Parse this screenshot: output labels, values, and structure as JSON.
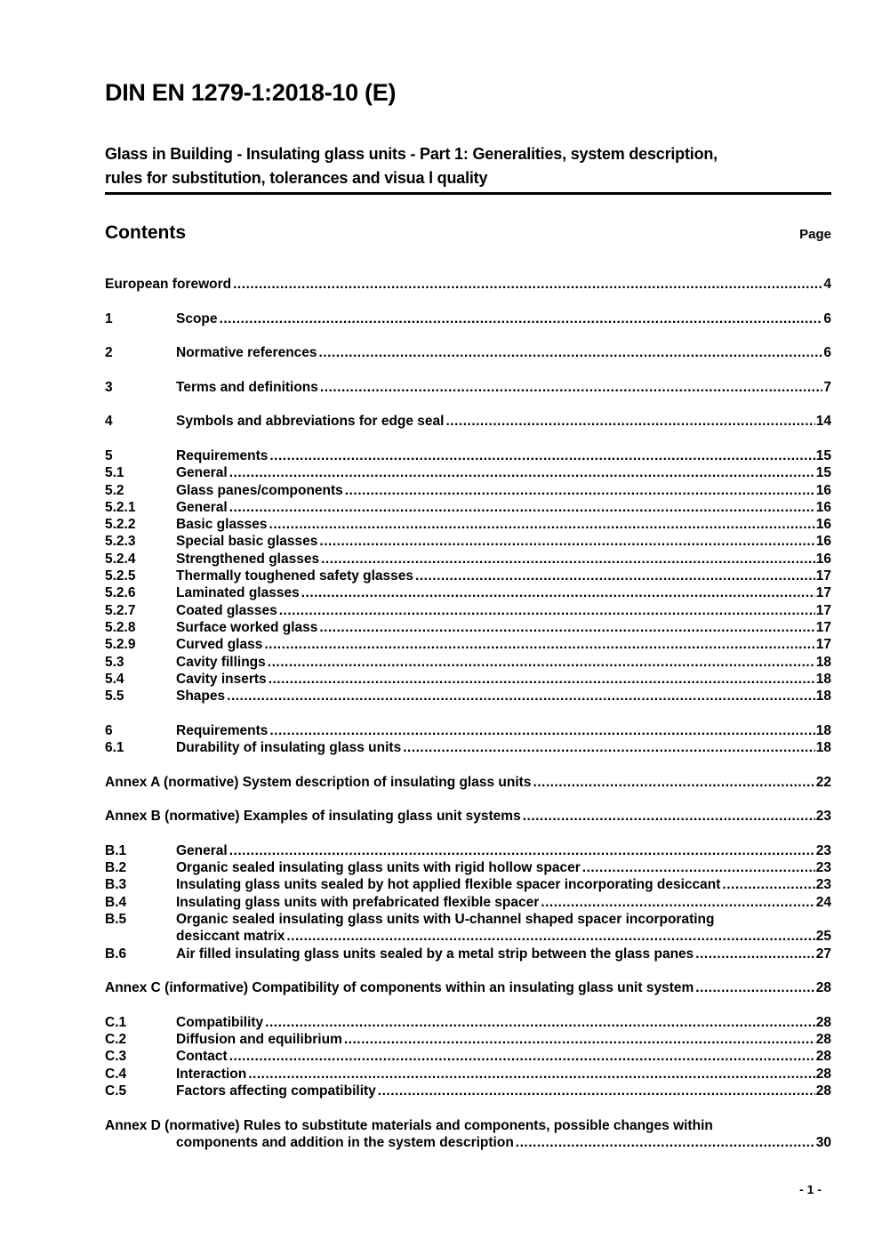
{
  "header": {
    "doc_number": "DIN EN 1279-1:2018-10 (E)",
    "doc_title_line1": "Glass in Building - Insulating glass units - Part 1: Generalities, system description,",
    "doc_title_line2": "rules for substitution, tolerances and visua l quality"
  },
  "contents": {
    "heading": "Contents",
    "page_column_label": "Page",
    "rows": [
      {
        "full": true,
        "text": "European foreword",
        "page": "4"
      },
      {
        "num": "1",
        "text": "Scope",
        "page": "6",
        "gap": true
      },
      {
        "num": "2",
        "text": "Normative references",
        "page": "6",
        "gap": true
      },
      {
        "num": "3",
        "text": "Terms and definitions",
        "page": "7",
        "gap": true
      },
      {
        "num": "4",
        "text": "Symbols and abbreviations for edge seal",
        "page": "14",
        "gap": true
      },
      {
        "num": "5",
        "text": "Requirements",
        "page": "15",
        "gap": true
      },
      {
        "num": "5.1",
        "text": "General",
        "page": "15"
      },
      {
        "num": "5.2",
        "text": "Glass panes/components",
        "page": "16"
      },
      {
        "num": "5.2.1",
        "text": "General",
        "page": "16"
      },
      {
        "num": "5.2.2",
        "text": "Basic glasses",
        "page": "16"
      },
      {
        "num": "5.2.3",
        "text": "Special basic glasses",
        "page": "16"
      },
      {
        "num": "5.2.4",
        "text": "Strengthened glasses",
        "page": "16"
      },
      {
        "num": "5.2.5",
        "text": "Thermally toughened safety glasses",
        "page": "17"
      },
      {
        "num": "5.2.6",
        "text": "Laminated glasses",
        "page": "17"
      },
      {
        "num": "5.2.7",
        "text": "Coated glasses",
        "page": "17"
      },
      {
        "num": "5.2.8",
        "text": "Surface worked glass",
        "page": "17"
      },
      {
        "num": "5.2.9",
        "text": "Curved glass",
        "page": "17"
      },
      {
        "num": "5.3",
        "text": "Cavity fillings",
        "page": "18"
      },
      {
        "num": "5.4",
        "text": "Cavity inserts",
        "page": "18"
      },
      {
        "num": "5.5",
        "text": "Shapes",
        "page": "18"
      },
      {
        "num": "6",
        "text": "Requirements",
        "page": "18",
        "gap": true
      },
      {
        "num": "6.1",
        "text": "Durability of insulating glass units",
        "page": "18"
      },
      {
        "full": true,
        "text": "Annex A (normative) System description of insulating glass units",
        "page": "22",
        "gap": true
      },
      {
        "full": true,
        "text": "Annex B (normative) Examples of insulating glass unit systems",
        "page": "23",
        "gap": true
      },
      {
        "num": "B.1",
        "text": "General",
        "page": "23",
        "gap": true
      },
      {
        "num": "B.2",
        "text": "Organic sealed insulating glass units with rigid hollow spacer",
        "page": "23"
      },
      {
        "num": "B.3",
        "text": "Insulating glass units sealed by hot applied flexible spacer incorporating desiccant",
        "page": "23"
      },
      {
        "num": "B.4",
        "text": "Insulating glass units with prefabricated flexible spacer",
        "page": "24"
      },
      {
        "num": "B.5",
        "text": "Organic sealed insulating glass units with U-channel shaped spacer incorporating",
        "nodots": true
      },
      {
        "num": "",
        "text": "desiccant matrix",
        "page": "25"
      },
      {
        "num": "B.6",
        "text": "Air filled insulating glass units sealed by a metal strip between the glass panes",
        "page": "27"
      },
      {
        "full": true,
        "text": "Annex C (informative) Compatibility of components within an insulating glass unit system",
        "page": "28",
        "gap": true
      },
      {
        "num": "C.1",
        "text": "Compatibility",
        "page": "28",
        "gap": true
      },
      {
        "num": "C.2",
        "text": "Diffusion and equilibrium",
        "page": "28"
      },
      {
        "num": "C.3",
        "text": "Contact",
        "page": "28"
      },
      {
        "num": "C.4",
        "text": "Interaction",
        "page": "28"
      },
      {
        "num": "C.5",
        "text": "Factors affecting compatibility",
        "page": "28"
      },
      {
        "full": true,
        "text": "Annex D (normative) Rules to substitute materials and components, possible changes within",
        "nodots": true,
        "gap": true
      },
      {
        "num": "",
        "text": "components and addition in the system description",
        "page": "30"
      }
    ]
  },
  "footer": {
    "page_number": "- 1 -"
  }
}
